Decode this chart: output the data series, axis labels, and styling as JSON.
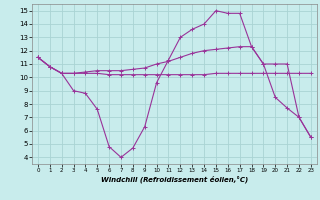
{
  "xlabel": "Windchill (Refroidissement éolien,°C)",
  "bg_color": "#c8ecec",
  "grid_color": "#aad4d4",
  "line_color": "#993399",
  "xlim": [
    -0.5,
    23.5
  ],
  "ylim": [
    3.5,
    15.5
  ],
  "xticks": [
    0,
    1,
    2,
    3,
    4,
    5,
    6,
    7,
    8,
    9,
    10,
    11,
    12,
    13,
    14,
    15,
    16,
    17,
    18,
    19,
    20,
    21,
    22,
    23
  ],
  "yticks": [
    4,
    5,
    6,
    7,
    8,
    9,
    10,
    11,
    12,
    13,
    14,
    15
  ],
  "line1_x": [
    0,
    1,
    2,
    3,
    4,
    5,
    6,
    7,
    8,
    9,
    10,
    11,
    12,
    13,
    14,
    15,
    16,
    17,
    18,
    19,
    20,
    21,
    22,
    23
  ],
  "line1_y": [
    11.5,
    10.8,
    10.3,
    10.3,
    10.3,
    10.3,
    10.2,
    10.2,
    10.2,
    10.2,
    10.2,
    10.2,
    10.2,
    10.2,
    10.2,
    10.3,
    10.3,
    10.3,
    10.3,
    10.3,
    10.3,
    10.3,
    10.3,
    10.3
  ],
  "line2_x": [
    0,
    1,
    2,
    3,
    4,
    5,
    6,
    7,
    8,
    9,
    10,
    11,
    12,
    13,
    14,
    15,
    16,
    17,
    18,
    19,
    20,
    21,
    22,
    23
  ],
  "line2_y": [
    11.5,
    10.8,
    10.3,
    10.3,
    10.4,
    10.5,
    10.5,
    10.5,
    10.6,
    10.7,
    11.0,
    11.2,
    11.5,
    11.8,
    12.0,
    12.1,
    12.2,
    12.3,
    12.3,
    11.0,
    11.0,
    11.0,
    7.0,
    5.5
  ],
  "line3_x": [
    0,
    1,
    2,
    3,
    4,
    5,
    6,
    7,
    8,
    9,
    10,
    11,
    12,
    13,
    14,
    15,
    16,
    17,
    18,
    19,
    20,
    21,
    22,
    23
  ],
  "line3_y": [
    11.5,
    10.8,
    10.3,
    9.0,
    8.8,
    7.6,
    4.8,
    4.0,
    4.7,
    6.3,
    9.6,
    11.3,
    13.0,
    13.6,
    14.0,
    15.0,
    14.8,
    14.8,
    12.3,
    11.0,
    8.5,
    7.7,
    7.0,
    5.5
  ],
  "marker": "+",
  "markersize": 3,
  "linewidth": 0.8,
  "tick_fontsize_x": 4.0,
  "tick_fontsize_y": 5.0,
  "xlabel_fontsize": 5.0
}
